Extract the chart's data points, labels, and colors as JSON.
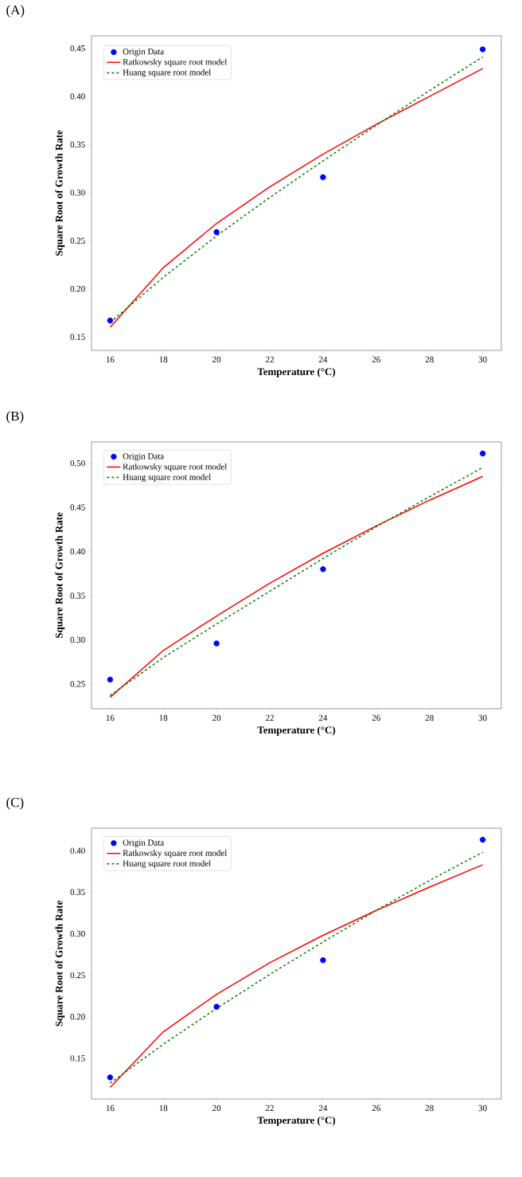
{
  "chart_data": [
    {
      "type": "line",
      "title": "(A)",
      "xlabel": "Temperature (°C)",
      "ylabel": "Square Root of Growth Rate",
      "xlim": [
        15.3,
        30.7
      ],
      "ylim": [
        0.136,
        0.463
      ],
      "xticks": [
        16,
        18,
        20,
        22,
        24,
        26,
        28,
        30
      ],
      "yticks": [
        {
          "value": 0.15,
          "label": "0.15"
        },
        {
          "value": 0.2,
          "label": "0.20"
        },
        {
          "value": 0.25,
          "label": "0.25"
        },
        {
          "value": 0.3,
          "label": "0.30"
        },
        {
          "value": 0.35,
          "label": "0.35"
        },
        {
          "value": 0.4,
          "label": "0.40"
        },
        {
          "value": 0.45,
          "label": "0.45"
        }
      ],
      "legend": "top left",
      "grid": false,
      "series": [
        {
          "name": "Origin Data",
          "type": "scatter",
          "marker": "circle",
          "color": "#0000ff",
          "x": [
            16,
            20,
            24,
            30
          ],
          "values": [
            0.167,
            0.259,
            0.316,
            0.449
          ]
        },
        {
          "name": "Ratkowsky square root model",
          "marker": "none",
          "line_style": "solid",
          "color": "#ff0000",
          "x": [
            16,
            18,
            20,
            22,
            24,
            26,
            28,
            30
          ],
          "values": [
            0.16,
            0.222,
            0.268,
            0.306,
            0.34,
            0.371,
            0.4,
            0.429
          ]
        },
        {
          "name": "Huang square root model",
          "marker": "none",
          "line_style": "dashed",
          "color": "#008000",
          "x": [
            16,
            18,
            20,
            22,
            24,
            26,
            28,
            30
          ],
          "values": [
            0.165,
            0.212,
            0.255,
            0.295,
            0.333,
            0.37,
            0.406,
            0.441
          ]
        }
      ]
    },
    {
      "type": "line",
      "title": "(B)",
      "xlabel": "Temperature (°C)",
      "ylabel": "Square Root of Growth Rate",
      "xlim": [
        15.3,
        30.7
      ],
      "ylim": [
        0.222,
        0.524
      ],
      "xticks": [
        16,
        18,
        20,
        22,
        24,
        26,
        28,
        30
      ],
      "yticks": [
        {
          "value": 0.25,
          "label": "0.25"
        },
        {
          "value": 0.3,
          "label": "0.30"
        },
        {
          "value": 0.35,
          "label": "0.35"
        },
        {
          "value": 0.4,
          "label": "0.40"
        },
        {
          "value": 0.45,
          "label": "0.45"
        },
        {
          "value": 0.5,
          "label": "0.50"
        }
      ],
      "legend": "top left",
      "grid": false,
      "series": [
        {
          "name": "Origin Data",
          "type": "scatter",
          "marker": "circle",
          "color": "#0000ff",
          "x": [
            16,
            20,
            24,
            30
          ],
          "values": [
            0.255,
            0.296,
            0.38,
            0.511
          ]
        },
        {
          "name": "Ratkowsky square root model",
          "marker": "none",
          "line_style": "solid",
          "color": "#ff0000",
          "x": [
            16,
            18,
            20,
            22,
            24,
            26,
            28,
            30
          ],
          "values": [
            0.235,
            0.288,
            0.327,
            0.364,
            0.398,
            0.429,
            0.458,
            0.485
          ]
        },
        {
          "name": "Huang square root model",
          "marker": "none",
          "line_style": "dashed",
          "color": "#008000",
          "x": [
            16,
            18,
            20,
            22,
            24,
            26,
            28,
            30
          ],
          "values": [
            0.237,
            0.28,
            0.318,
            0.355,
            0.392,
            0.428,
            0.462,
            0.495
          ]
        }
      ]
    },
    {
      "type": "line",
      "title": "(C)",
      "xlabel": "Temperature (°C)",
      "ylabel": "Square Root of Growth Rate",
      "xlim": [
        15.3,
        30.7
      ],
      "ylim": [
        0.101,
        0.427
      ],
      "xticks": [
        16,
        18,
        20,
        22,
        24,
        26,
        28,
        30
      ],
      "yticks": [
        {
          "value": 0.15,
          "label": "0.15"
        },
        {
          "value": 0.2,
          "label": "0.20"
        },
        {
          "value": 0.25,
          "label": "0.25"
        },
        {
          "value": 0.3,
          "label": "0.30"
        },
        {
          "value": 0.35,
          "label": "0.35"
        },
        {
          "value": 0.4,
          "label": "0.40"
        }
      ],
      "legend": "top left",
      "grid": false,
      "series": [
        {
          "name": "Origin Data",
          "type": "scatter",
          "marker": "circle",
          "color": "#0000ff",
          "x": [
            16,
            20,
            24,
            30
          ],
          "values": [
            0.127,
            0.212,
            0.268,
            0.413
          ]
        },
        {
          "name": "Ratkowsky square root model",
          "marker": "none",
          "line_style": "solid",
          "color": "#ff0000",
          "x": [
            16,
            18,
            20,
            22,
            24,
            26,
            28,
            30
          ],
          "values": [
            0.115,
            0.182,
            0.227,
            0.265,
            0.298,
            0.328,
            0.356,
            0.383
          ]
        },
        {
          "name": "Huang square root model",
          "marker": "none",
          "line_style": "dashed",
          "color": "#008000",
          "x": [
            16,
            18,
            20,
            22,
            24,
            26,
            28,
            30
          ],
          "values": [
            0.12,
            0.167,
            0.21,
            0.251,
            0.29,
            0.328,
            0.364,
            0.398
          ]
        }
      ]
    }
  ]
}
